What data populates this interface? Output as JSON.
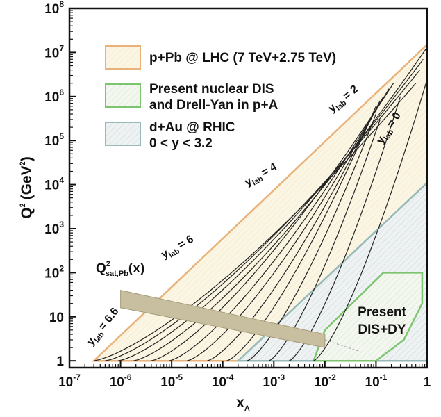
{
  "chart_data": {
    "type": "area",
    "xlabel": "x",
    "xlabel_sub": "A",
    "ylabel": "Q",
    "ylabel_sup": "2",
    "ylabel_unit": "(GeV",
    "ylabel_unit_sup": "2",
    "ylabel_unit_close": ")",
    "x_scale": "log",
    "y_scale": "log",
    "xlim": [
      1e-07,
      1
    ],
    "ylim": [
      0.7,
      100000000.0
    ],
    "x_ticks": [
      {
        "base": "10",
        "exp": "-7"
      },
      {
        "base": "10",
        "exp": "-6"
      },
      {
        "base": "10",
        "exp": "-5"
      },
      {
        "base": "10",
        "exp": "-4"
      },
      {
        "base": "10",
        "exp": "-3"
      },
      {
        "base": "10",
        "exp": "-2"
      },
      {
        "base": "10",
        "exp": "-1"
      },
      {
        "base": "1",
        "exp": ""
      }
    ],
    "y_ticks": [
      {
        "base": "1",
        "exp": ""
      },
      {
        "base": "10",
        "exp": ""
      },
      {
        "base": "10",
        "exp": "2"
      },
      {
        "base": "10",
        "exp": "3"
      },
      {
        "base": "10",
        "exp": "4"
      },
      {
        "base": "10",
        "exp": "5"
      },
      {
        "base": "10",
        "exp": "6"
      },
      {
        "base": "10",
        "exp": "7"
      },
      {
        "base": "10",
        "exp": "8"
      }
    ],
    "grid": false,
    "legend_position": "top-left",
    "legend": [
      {
        "label": "p+Pb @ LHC (7 TeV+2.75 TeV)",
        "color": "#e8b27a",
        "fill": "#fbf6e4"
      },
      {
        "label_line1": "Present nuclear DIS",
        "label_line2": "and Drell-Yan in p+A",
        "color": "#7cc46e",
        "fill": "#eef5ea"
      },
      {
        "label_line1": "d+Au @ RHIC",
        "label_line2": "0 < y < 3.2",
        "color": "#97b9b9",
        "fill": "#e9efef"
      }
    ],
    "regions": {
      "lhc": [
        [
          3e-07,
          1
        ],
        [
          1,
          15000000.0
        ],
        [
          1,
          1
        ]
      ],
      "rhic": [
        [
          0.0002,
          1
        ],
        [
          1,
          11000.0
        ],
        [
          1,
          1
        ]
      ],
      "dis": [
        [
          0.006,
          1
        ],
        [
          0.01,
          5
        ],
        [
          0.14,
          100
        ],
        [
          0.8,
          100
        ],
        [
          0.8,
          20
        ],
        [
          0.35,
          3
        ],
        [
          0.1,
          1
        ]
      ]
    },
    "y_lab_curves": [
      {
        "label": "",
        "x0": 3e-07,
        "xend": 0.6,
        "qend": 2000000.0
      },
      {
        "label": "",
        "x0": 5e-07,
        "xend": 0.72,
        "qend": 4000000.0
      },
      {
        "label": "",
        "x0": 9e-07,
        "xend": 0.84,
        "qend": 7000000.0
      },
      {
        "label": "",
        "x0": 1.8e-06,
        "xend": 0.95,
        "qend": 12000000.0
      },
      {
        "label": "",
        "x0": 4e-06,
        "xend": 0.22,
        "qend": 2000000.0
      },
      {
        "label": "",
        "x0": 9e-06,
        "xend": 0.18,
        "qend": 1500000.0
      },
      {
        "label": "",
        "x0": 2e-05,
        "xend": 0.14,
        "qend": 1000000.0
      },
      {
        "label": "",
        "x0": 5e-05,
        "xend": 0.12,
        "qend": 800000.0
      },
      {
        "label": "",
        "x0": 0.00012,
        "xend": 0.1,
        "qend": 600000.0
      },
      {
        "label": "",
        "x0": 0.0003,
        "xend": 0.1,
        "qend": 400000.0
      },
      {
        "label": "",
        "x0": 0.0008,
        "xend": 0.12,
        "qend": 300000.0
      },
      {
        "label": "",
        "x0": 0.002,
        "xend": 0.3,
        "qend": 1000000.0
      },
      {
        "label": "",
        "x0": 0.006,
        "xend": 0.95,
        "qend": 2000000.0
      }
    ],
    "y_lab_labels": [
      {
        "text": "y",
        "sub": "lab",
        "value": "= 6.6"
      },
      {
        "text": "y",
        "sub": "lab",
        "value": "= 6"
      },
      {
        "text": "y",
        "sub": "lab",
        "value": "= 4"
      },
      {
        "text": "y",
        "sub": "lab",
        "value": "= 2"
      },
      {
        "text": "y",
        "sub": "lab",
        "value": "= 0"
      }
    ],
    "saturation": {
      "label": "Q",
      "label_sup": "2",
      "label_sub": "sat,Pb",
      "label_arg": "(x)",
      "band_x": [
        1e-06,
        0.01
      ],
      "band_q_lower_start": 16,
      "band_q_upper_start": 40,
      "band_q_lower_end": 2,
      "band_q_upper_end": 4,
      "color": "#c8bfa0"
    },
    "present_label_line1": "Present",
    "present_label_line2": "DIS+DY"
  }
}
